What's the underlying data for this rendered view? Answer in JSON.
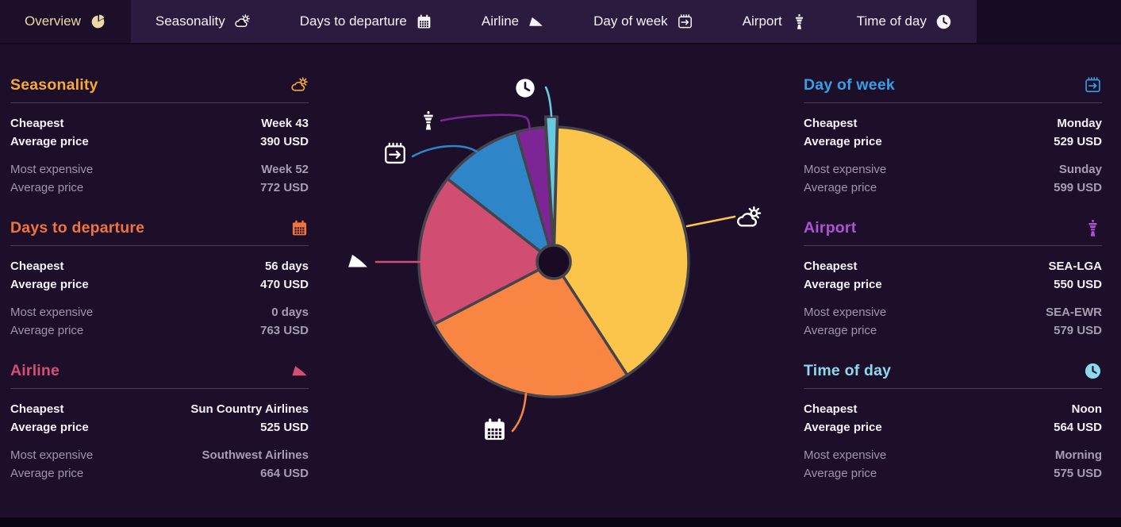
{
  "nav": {
    "tabs": [
      {
        "label": "Overview",
        "icon": "pie",
        "active": true
      },
      {
        "label": "Seasonality",
        "icon": "sun-cloud",
        "active": false
      },
      {
        "label": "Days to departure",
        "icon": "calendar",
        "active": false
      },
      {
        "label": "Airline",
        "icon": "plane",
        "active": false
      },
      {
        "label": "Day of week",
        "icon": "calendar-arrow",
        "active": false
      },
      {
        "label": "Airport",
        "icon": "tower",
        "active": false
      },
      {
        "label": "Time of day",
        "icon": "clock",
        "active": false
      }
    ]
  },
  "labels": {
    "cheapest": "Cheapest",
    "average_price": "Average price",
    "most_expensive": "Most expensive"
  },
  "panels": [
    {
      "title": "Seasonality",
      "accent": "#f5a83b",
      "icon": "sun-cloud",
      "cheapest": {
        "name": "Week 43",
        "price": "390 USD"
      },
      "most_expensive": {
        "name": "Week 52",
        "price": "772 USD"
      }
    },
    {
      "title": "Days to departure",
      "accent": "#f0743b",
      "icon": "calendar",
      "cheapest": {
        "name": "56 days",
        "price": "470 USD"
      },
      "most_expensive": {
        "name": "0 days",
        "price": "763 USD"
      }
    },
    {
      "title": "Airline",
      "accent": "#d45073",
      "icon": "plane",
      "cheapest": {
        "name": "Sun Country Airlines",
        "price": "525 USD"
      },
      "most_expensive": {
        "name": "Southwest Airlines",
        "price": "664 USD"
      }
    },
    {
      "title": "Day of week",
      "accent": "#35a0e6",
      "icon": "calendar-arrow",
      "cheapest": {
        "name": "Monday",
        "price": "529 USD"
      },
      "most_expensive": {
        "name": "Sunday",
        "price": "599 USD"
      }
    },
    {
      "title": "Airport",
      "accent": "#b052d4",
      "icon": "tower",
      "cheapest": {
        "name": "SEA-LGA",
        "price": "550 USD"
      },
      "most_expensive": {
        "name": "SEA-EWR",
        "price": "579 USD"
      }
    },
    {
      "title": "Time of day",
      "accent": "#8ed8ec",
      "icon": "clock",
      "cheapest": {
        "name": "Noon",
        "price": "564 USD"
      },
      "most_expensive": {
        "name": "Morning",
        "price": "575 USD"
      }
    }
  ],
  "chart_data": {
    "type": "pie",
    "legend": false,
    "stroke_color": "#45444d",
    "hole_color": "#190b23",
    "slices": [
      {
        "name": "Seasonality",
        "color": "#fbc54c",
        "start_deg": 1.5,
        "end_deg": 147,
        "percent": 40.4,
        "icon": "sun-cloud",
        "exploded": false
      },
      {
        "name": "Days to departure",
        "color": "#f88542",
        "start_deg": 147,
        "end_deg": 242.5,
        "percent": 26.5,
        "icon": "calendar",
        "exploded": false
      },
      {
        "name": "Airline",
        "color": "#d14d72",
        "start_deg": 242.5,
        "end_deg": 308,
        "percent": 18.2,
        "icon": "plane",
        "exploded": false
      },
      {
        "name": "Day of week",
        "color": "#2e86c9",
        "start_deg": 308,
        "end_deg": 344,
        "percent": 10.0,
        "icon": "calendar-arrow",
        "exploded": false
      },
      {
        "name": "Airport",
        "color": "#7d2597",
        "start_deg": 344,
        "end_deg": 356.5,
        "percent": 3.5,
        "icon": "tower",
        "exploded": false
      },
      {
        "name": "Time of day",
        "color": "#66cbdf",
        "start_deg": 356.5,
        "end_deg": 361.5,
        "percent": 1.4,
        "icon": "clock",
        "exploded": true
      }
    ]
  }
}
